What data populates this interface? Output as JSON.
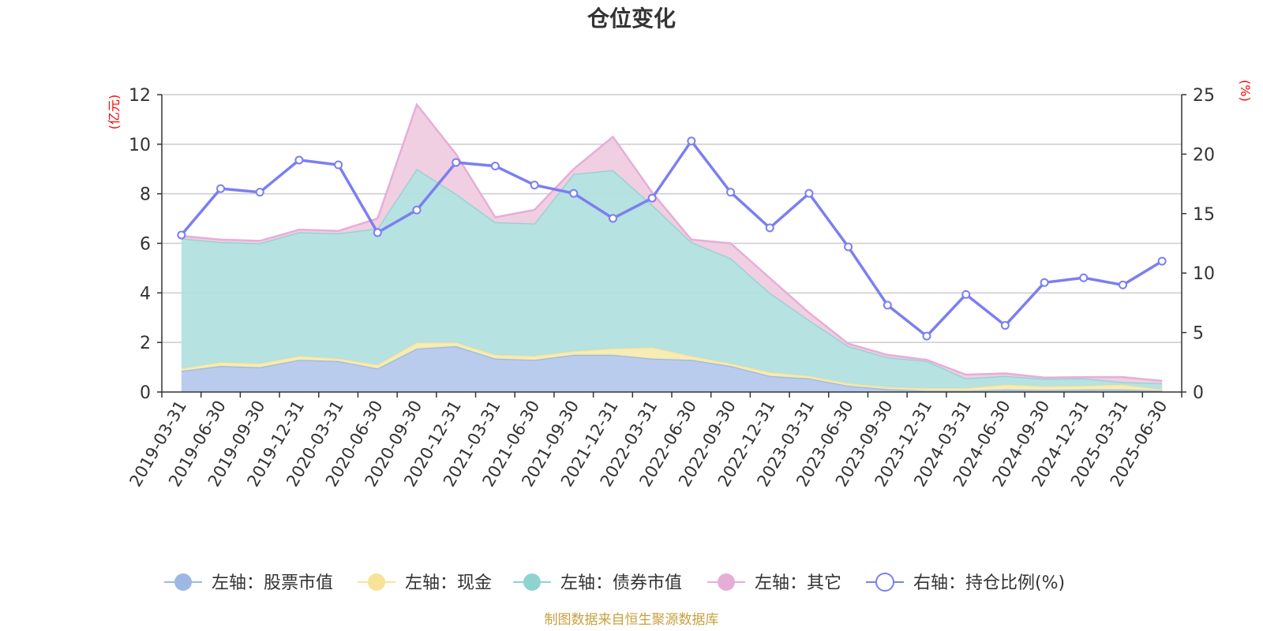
{
  "chart_data": {
    "type": "area",
    "title": "仓位变化",
    "left_unit": "(亿元)",
    "right_unit": "(%)",
    "categories": [
      "2019-03-31",
      "2019-06-30",
      "2019-09-30",
      "2019-12-31",
      "2020-03-31",
      "2020-06-30",
      "2020-09-30",
      "2020-12-31",
      "2021-03-31",
      "2021-06-30",
      "2021-09-30",
      "2021-12-31",
      "2022-03-31",
      "2022-06-30",
      "2022-09-30",
      "2022-12-31",
      "2023-03-31",
      "2023-06-30",
      "2023-09-30",
      "2023-12-31",
      "2024-03-31",
      "2024-06-30",
      "2024-09-30",
      "2024-12-31",
      "2025-03-31",
      "2025-06-30"
    ],
    "left_axis": {
      "min": 0,
      "max": 12,
      "ticks": [
        0,
        2,
        4,
        6,
        8,
        10,
        12
      ]
    },
    "right_axis": {
      "min": 0,
      "max": 25,
      "ticks": [
        0,
        5,
        10,
        15,
        20,
        25
      ]
    },
    "grid": true,
    "legend_position": "bottom",
    "stacked_series": [
      {
        "name": "左轴：股票市值",
        "color": "#9db8e3",
        "fill": "#b5c9ec",
        "values": [
          0.85,
          1.05,
          1.0,
          1.3,
          1.25,
          0.95,
          1.75,
          1.85,
          1.35,
          1.3,
          1.5,
          1.5,
          1.35,
          1.3,
          1.05,
          0.65,
          0.55,
          0.25,
          0.12,
          0.05,
          0.05,
          0.1,
          0.08,
          0.1,
          0.1,
          0.05
        ]
      },
      {
        "name": "左轴：现金",
        "color": "#f7e29a",
        "fill": "#f7ebb0",
        "values": [
          0.1,
          0.15,
          0.15,
          0.15,
          0.1,
          0.15,
          0.25,
          0.15,
          0.15,
          0.15,
          0.15,
          0.25,
          0.45,
          0.15,
          0.1,
          0.15,
          0.1,
          0.1,
          0.08,
          0.1,
          0.1,
          0.2,
          0.15,
          0.15,
          0.2,
          0.05
        ]
      },
      {
        "name": "左轴：债券市值",
        "color": "#8fd3d1",
        "fill": "#b2e0df",
        "values": [
          5.25,
          4.85,
          4.85,
          5.0,
          5.05,
          5.5,
          7.0,
          6.0,
          5.35,
          5.35,
          7.15,
          7.2,
          5.75,
          4.6,
          4.25,
          3.2,
          2.25,
          1.5,
          1.2,
          1.1,
          0.4,
          0.35,
          0.3,
          0.3,
          0.1,
          0.25
        ]
      },
      {
        "name": "左轴：其它",
        "color": "#e6aed6",
        "fill": "#f0cce2",
        "values": [
          0.1,
          0.1,
          0.1,
          0.1,
          0.1,
          0.4,
          2.6,
          1.6,
          0.2,
          0.55,
          0.2,
          1.35,
          0.5,
          0.1,
          0.6,
          0.6,
          0.3,
          0.1,
          0.1,
          0.05,
          0.15,
          0.1,
          0.05,
          0.05,
          0.2,
          0.1
        ]
      }
    ],
    "line_series": {
      "name": "右轴：持仓比例(%)",
      "color": "#7b7ff0",
      "values": [
        13.2,
        17.1,
        16.8,
        19.5,
        19.1,
        13.4,
        15.3,
        19.3,
        19.0,
        17.4,
        16.7,
        14.6,
        16.3,
        21.1,
        16.8,
        13.8,
        16.7,
        12.2,
        7.3,
        4.7,
        8.2,
        5.6,
        9.2,
        9.6,
        9.0,
        11.0
      ]
    },
    "source": "制图数据来自恒生聚源数据库"
  }
}
